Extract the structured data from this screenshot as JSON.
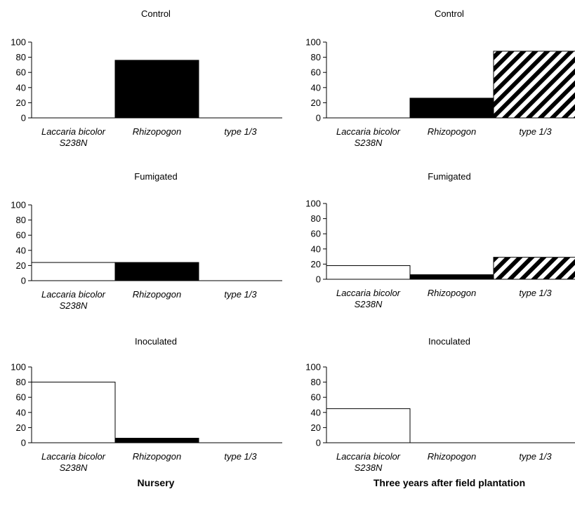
{
  "column_captions": [
    "Nursery",
    "Three years after field plantation"
  ],
  "chart_data": [
    {
      "type": "bar",
      "title": "Control",
      "categories": [
        "Laccaria bicolor S238N",
        "Rhizopogon",
        "type 1/3"
      ],
      "values": [
        0,
        76,
        0
      ],
      "ylim": [
        0,
        100
      ],
      "yticks": [
        0,
        20,
        40,
        60,
        80,
        100
      ],
      "xlabel": "",
      "ylabel": "",
      "bar_styles": [
        "white",
        "black",
        "hatched"
      ]
    },
    {
      "type": "bar",
      "title": "Control",
      "categories": [
        "Laccaria bicolor S238N",
        "Rhizopogon",
        "type 1/3"
      ],
      "values": [
        0,
        26,
        88
      ],
      "ylim": [
        0,
        100
      ],
      "yticks": [
        0,
        20,
        40,
        60,
        80,
        100
      ],
      "xlabel": "",
      "ylabel": "",
      "bar_styles": [
        "white",
        "black",
        "hatched"
      ]
    },
    {
      "type": "bar",
      "title": "Fumigated",
      "categories": [
        "Laccaria bicolor S238N",
        "Rhizopogon",
        "type 1/3"
      ],
      "values": [
        24,
        24,
        0
      ],
      "ylim": [
        0,
        100
      ],
      "yticks": [
        0,
        20,
        40,
        60,
        80,
        100
      ],
      "xlabel": "",
      "ylabel": "",
      "bar_styles": [
        "white",
        "black",
        "hatched"
      ]
    },
    {
      "type": "bar",
      "title": "Fumigated",
      "categories": [
        "Laccaria bicolor S238N",
        "Rhizopogon",
        "type 1/3"
      ],
      "values": [
        18,
        6,
        29
      ],
      "ylim": [
        0,
        100
      ],
      "yticks": [
        0,
        20,
        40,
        60,
        80,
        100
      ],
      "xlabel": "",
      "ylabel": "",
      "bar_styles": [
        "white",
        "black",
        "hatched"
      ]
    },
    {
      "type": "bar",
      "title": "Inoculated",
      "categories": [
        "Laccaria bicolor S238N",
        "Rhizopogon",
        "type 1/3"
      ],
      "values": [
        80,
        6,
        0
      ],
      "ylim": [
        0,
        100
      ],
      "yticks": [
        0,
        20,
        40,
        60,
        80,
        100
      ],
      "xlabel": "",
      "ylabel": "",
      "bar_styles": [
        "white",
        "black",
        "hatched"
      ]
    },
    {
      "type": "bar",
      "title": "Inoculated",
      "categories": [
        "Laccaria bicolor S238N",
        "Rhizopogon",
        "type 1/3"
      ],
      "values": [
        45,
        0,
        0
      ],
      "ylim": [
        0,
        100
      ],
      "yticks": [
        0,
        20,
        40,
        60,
        80,
        100
      ],
      "xlabel": "",
      "ylabel": "",
      "bar_styles": [
        "white",
        "black",
        "hatched"
      ]
    }
  ]
}
